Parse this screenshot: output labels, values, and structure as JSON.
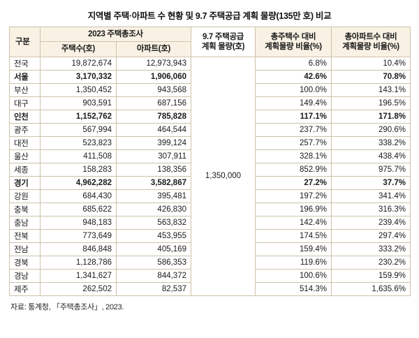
{
  "title": "지역별 주택·아파트 수 현황 및 9.7 주택공급 계획 물량(135만 호) 비교",
  "table": {
    "headers": {
      "region": "구분",
      "survey_group": "2023 주택총조사",
      "house_count": "주택수(호)",
      "apt_count": "아파트(호)",
      "plan_volume": "9.7 주택공급\n계획 물량(호)",
      "house_ratio": "총주택수 대비\n계획물량 비율(%)",
      "apt_ratio": "총아파트수 대비\n계획물량 비율(%)"
    },
    "plan_volume_value": "1,350,000",
    "header_bg_color": "#f9f2e4",
    "border_color": "#cdc2ab",
    "rows": [
      {
        "region": "전국",
        "houses": "19,872,674",
        "apartments": "12,973,943",
        "house_ratio": "6.8%",
        "apt_ratio": "10.4%",
        "bold": false
      },
      {
        "region": "서울",
        "houses": "3,170,332",
        "apartments": "1,906,060",
        "house_ratio": "42.6%",
        "apt_ratio": "70.8%",
        "bold": true
      },
      {
        "region": "부산",
        "houses": "1,350,452",
        "apartments": "943,568",
        "house_ratio": "100.0%",
        "apt_ratio": "143.1%",
        "bold": false
      },
      {
        "region": "대구",
        "houses": "903,591",
        "apartments": "687,156",
        "house_ratio": "149.4%",
        "apt_ratio": "196.5%",
        "bold": false
      },
      {
        "region": "인천",
        "houses": "1,152,762",
        "apartments": "785,828",
        "house_ratio": "117.1%",
        "apt_ratio": "171.8%",
        "bold": true
      },
      {
        "region": "광주",
        "houses": "567,994",
        "apartments": "464,544",
        "house_ratio": "237.7%",
        "apt_ratio": "290.6%",
        "bold": false
      },
      {
        "region": "대전",
        "houses": "523,823",
        "apartments": "399,124",
        "house_ratio": "257.7%",
        "apt_ratio": "338.2%",
        "bold": false
      },
      {
        "region": "울산",
        "houses": "411,508",
        "apartments": "307,911",
        "house_ratio": "328.1%",
        "apt_ratio": "438.4%",
        "bold": false
      },
      {
        "region": "세종",
        "houses": "158,283",
        "apartments": "138,356",
        "house_ratio": "852.9%",
        "apt_ratio": "975.7%",
        "bold": false
      },
      {
        "region": "경기",
        "houses": "4,962,282",
        "apartments": "3,582,867",
        "house_ratio": "27.2%",
        "apt_ratio": "37.7%",
        "bold": true
      },
      {
        "region": "강원",
        "houses": "684,430",
        "apartments": "395,481",
        "house_ratio": "197.2%",
        "apt_ratio": "341.4%",
        "bold": false
      },
      {
        "region": "충북",
        "houses": "685,622",
        "apartments": "426,830",
        "house_ratio": "196.9%",
        "apt_ratio": "316.3%",
        "bold": false
      },
      {
        "region": "충남",
        "houses": "948,183",
        "apartments": "563,832",
        "house_ratio": "142.4%",
        "apt_ratio": "239.4%",
        "bold": false
      },
      {
        "region": "전북",
        "houses": "773,649",
        "apartments": "453,955",
        "house_ratio": "174.5%",
        "apt_ratio": "297.4%",
        "bold": false
      },
      {
        "region": "전남",
        "houses": "846,848",
        "apartments": "405,169",
        "house_ratio": "159.4%",
        "apt_ratio": "333.2%",
        "bold": false
      },
      {
        "region": "경북",
        "houses": "1,128,786",
        "apartments": "586,353",
        "house_ratio": "119.6%",
        "apt_ratio": "230.2%",
        "bold": false
      },
      {
        "region": "경남",
        "houses": "1,341,627",
        "apartments": "844,372",
        "house_ratio": "100.6%",
        "apt_ratio": "159.9%",
        "bold": false
      },
      {
        "region": "제주",
        "houses": "262,502",
        "apartments": "82,537",
        "house_ratio": "514.3%",
        "apt_ratio": "1,635.6%",
        "bold": false
      }
    ]
  },
  "footnote": "자료: 통계청, 「주택총조사」, 2023."
}
